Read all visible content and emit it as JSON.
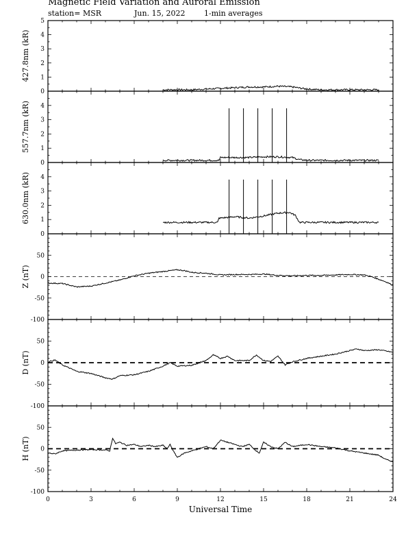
{
  "header": {
    "title": "Magnetic Field Variation and Auroral Emission",
    "station": "station= MSR",
    "date": "Jun. 15, 2022",
    "note": "1-min averages"
  },
  "chart_data": [
    {
      "type": "line",
      "ylabel": "427.8nm (kR)",
      "ylim": [
        0,
        5
      ],
      "yticks": [
        0,
        1,
        2,
        3,
        4,
        5
      ],
      "xlim": [
        0,
        24
      ],
      "series": [
        {
          "x": [
            8,
            9,
            10,
            11,
            12,
            13,
            14,
            15,
            16,
            17,
            18,
            19,
            20,
            21,
            22,
            23
          ],
          "y": [
            0.1,
            0.1,
            0.1,
            0.15,
            0.2,
            0.25,
            0.3,
            0.3,
            0.35,
            0.3,
            0.15,
            0.1,
            0.1,
            0.1,
            0.1,
            0.1
          ]
        }
      ],
      "spikes": []
    },
    {
      "type": "line",
      "ylabel": "557.7nm (kR)",
      "ylim": [
        0,
        5
      ],
      "yticks": [
        0,
        1,
        2,
        3,
        4
      ],
      "xlim": [
        0,
        24
      ],
      "series": [
        {
          "x": [
            8,
            9,
            10,
            11,
            11.9,
            12,
            13,
            14,
            15,
            16,
            17,
            17.5,
            18,
            19,
            20,
            21,
            22,
            23
          ],
          "y": [
            0.15,
            0.15,
            0.15,
            0.15,
            0.15,
            0.35,
            0.35,
            0.35,
            0.4,
            0.4,
            0.35,
            0.2,
            0.15,
            0.15,
            0.15,
            0.15,
            0.15,
            0.15
          ]
        }
      ],
      "spikes": [
        12.6,
        13.6,
        14.6,
        15.6,
        16.6
      ],
      "spike_top": 3.8
    },
    {
      "type": "line",
      "ylabel": "630.0nm (kR)",
      "ylim": [
        0,
        5
      ],
      "yticks": [
        0,
        1,
        2,
        3,
        4
      ],
      "xlim": [
        0,
        24
      ],
      "series": [
        {
          "x": [
            8,
            9,
            10,
            11,
            11.8,
            11.9,
            12,
            13,
            14,
            15,
            16,
            16.8,
            17.2,
            17.5,
            18,
            19,
            20,
            21,
            22,
            23
          ],
          "y": [
            0.8,
            0.8,
            0.8,
            0.8,
            0.8,
            1.1,
            1.1,
            1.2,
            1.1,
            1.25,
            1.45,
            1.5,
            1.3,
            0.8,
            0.8,
            0.8,
            0.8,
            0.8,
            0.8,
            0.8
          ]
        }
      ],
      "spikes": [
        12.6,
        13.6,
        14.6,
        15.6,
        16.6
      ],
      "spike_top": 3.8
    },
    {
      "type": "line",
      "ylabel": "Z (nT)",
      "ylim": [
        -100,
        100
      ],
      "yticks": [
        -100,
        -50,
        0,
        50
      ],
      "xlim": [
        0,
        24
      ],
      "zero_dash": "thin",
      "series": [
        {
          "x": [
            0,
            1,
            2,
            3,
            4,
            5,
            5.5,
            6,
            7,
            8,
            8.5,
            9,
            9.5,
            10,
            11,
            12,
            13,
            14,
            15,
            16,
            17,
            18,
            19,
            20,
            21,
            22,
            22.5,
            23,
            23.5,
            24
          ],
          "y": [
            -15,
            -16,
            -24,
            -22,
            -15,
            -8,
            -3,
            2,
            8,
            12,
            14,
            16,
            14,
            10,
            8,
            4,
            5,
            5,
            6,
            3,
            2,
            3,
            3,
            4,
            5,
            4,
            0,
            -6,
            -12,
            -20
          ]
        }
      ]
    },
    {
      "type": "line",
      "ylabel": "D (nT)",
      "ylim": [
        -100,
        100
      ],
      "yticks": [
        -100,
        -50,
        0,
        50
      ],
      "xlim": [
        0,
        24
      ],
      "zero_dash": "thick",
      "series": [
        {
          "x": [
            0,
            0.5,
            1,
            2,
            3,
            4,
            4.5,
            5,
            6,
            7,
            8,
            8.5,
            9,
            10,
            11,
            11.5,
            12,
            12.5,
            13,
            14,
            14.5,
            15,
            15.5,
            16,
            16.5,
            17,
            18,
            19,
            20,
            21,
            21.5,
            22,
            23,
            24
          ],
          "y": [
            2,
            6,
            -5,
            -20,
            -25,
            -35,
            -38,
            -30,
            -28,
            -20,
            -8,
            0,
            -8,
            -6,
            5,
            18,
            10,
            15,
            5,
            5,
            18,
            5,
            3,
            15,
            -5,
            2,
            10,
            15,
            20,
            28,
            32,
            28,
            30,
            24
          ]
        }
      ]
    },
    {
      "type": "line",
      "ylabel": "H (nT)",
      "ylim": [
        -100,
        100
      ],
      "yticks": [
        -100,
        -50,
        0,
        50
      ],
      "xlim": [
        0,
        24
      ],
      "xticks": [
        0,
        3,
        6,
        9,
        12,
        15,
        18,
        21,
        24
      ],
      "xlabel": "Universal Time",
      "zero_dash": "thick",
      "series": [
        {
          "x": [
            0,
            0.5,
            1,
            2,
            3,
            4,
            4.3,
            4.5,
            4.7,
            5,
            5.5,
            6,
            6.5,
            7,
            7.5,
            8,
            8.3,
            8.5,
            8.8,
            9,
            9.5,
            10,
            11,
            11.5,
            12,
            12.5,
            13,
            13.5,
            14,
            14.5,
            14.7,
            15,
            15.5,
            16,
            16.5,
            17,
            18,
            19,
            20,
            21,
            22,
            23,
            23.5,
            24
          ],
          "y": [
            -10,
            -12,
            -5,
            -3,
            -2,
            -3,
            -5,
            25,
            12,
            15,
            8,
            10,
            5,
            8,
            5,
            8,
            0,
            10,
            -10,
            -20,
            -10,
            -5,
            5,
            0,
            20,
            15,
            10,
            5,
            10,
            -5,
            -10,
            15,
            5,
            0,
            15,
            5,
            10,
            5,
            2,
            -5,
            -10,
            -15,
            -25,
            -30
          ]
        }
      ]
    }
  ]
}
